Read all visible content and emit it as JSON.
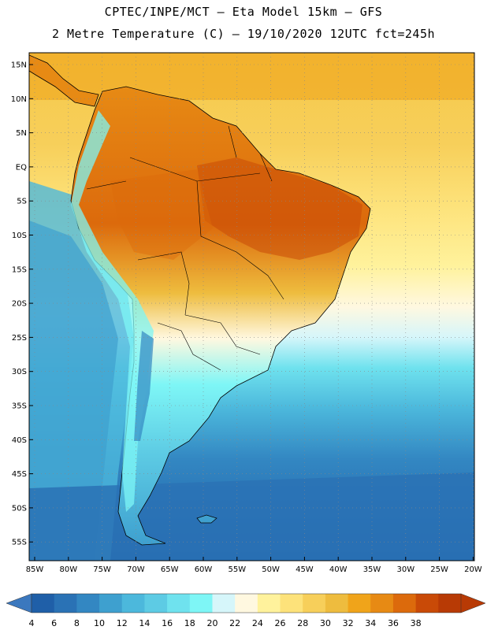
{
  "title_line1": "CPTEC/INPE/MCT –  Eta Model 15km – GFS",
  "title_line2": "2 Metre Temperature (C) – 19/10/2020 12UTC fct=245h",
  "lat_labels": [
    "15N",
    "10N",
    "5N",
    "EQ",
    "5S",
    "10S",
    "15S",
    "20S",
    "25S",
    "30S",
    "35S",
    "40S",
    "45S",
    "50S",
    "55S"
  ],
  "lon_labels": [
    "85W",
    "80W",
    "75W",
    "70W",
    "65W",
    "60W",
    "55W",
    "50W",
    "45W",
    "40W",
    "35W",
    "30W",
    "25W",
    "20W"
  ],
  "colorbar": {
    "values": [
      "4",
      "6",
      "8",
      "10",
      "12",
      "14",
      "16",
      "18",
      "20",
      "22",
      "24",
      "26",
      "28",
      "30",
      "32",
      "34",
      "36",
      "38"
    ],
    "colors": [
      "#1f5fa8",
      "#2a72b5",
      "#3387c2",
      "#3ea0cf",
      "#4cb8dc",
      "#5dcbe4",
      "#6fe2ee",
      "#7ef6f6",
      "#d6f6fa",
      "#fff8e0",
      "#fff29c",
      "#fde27a",
      "#f7cf5a",
      "#eebc3e",
      "#f0a41a",
      "#e78a14",
      "#dc6a0c",
      "#c94a07",
      "#b83a05"
    ],
    "under_color": "#3b78be",
    "over_color": "#b83a05"
  }
}
